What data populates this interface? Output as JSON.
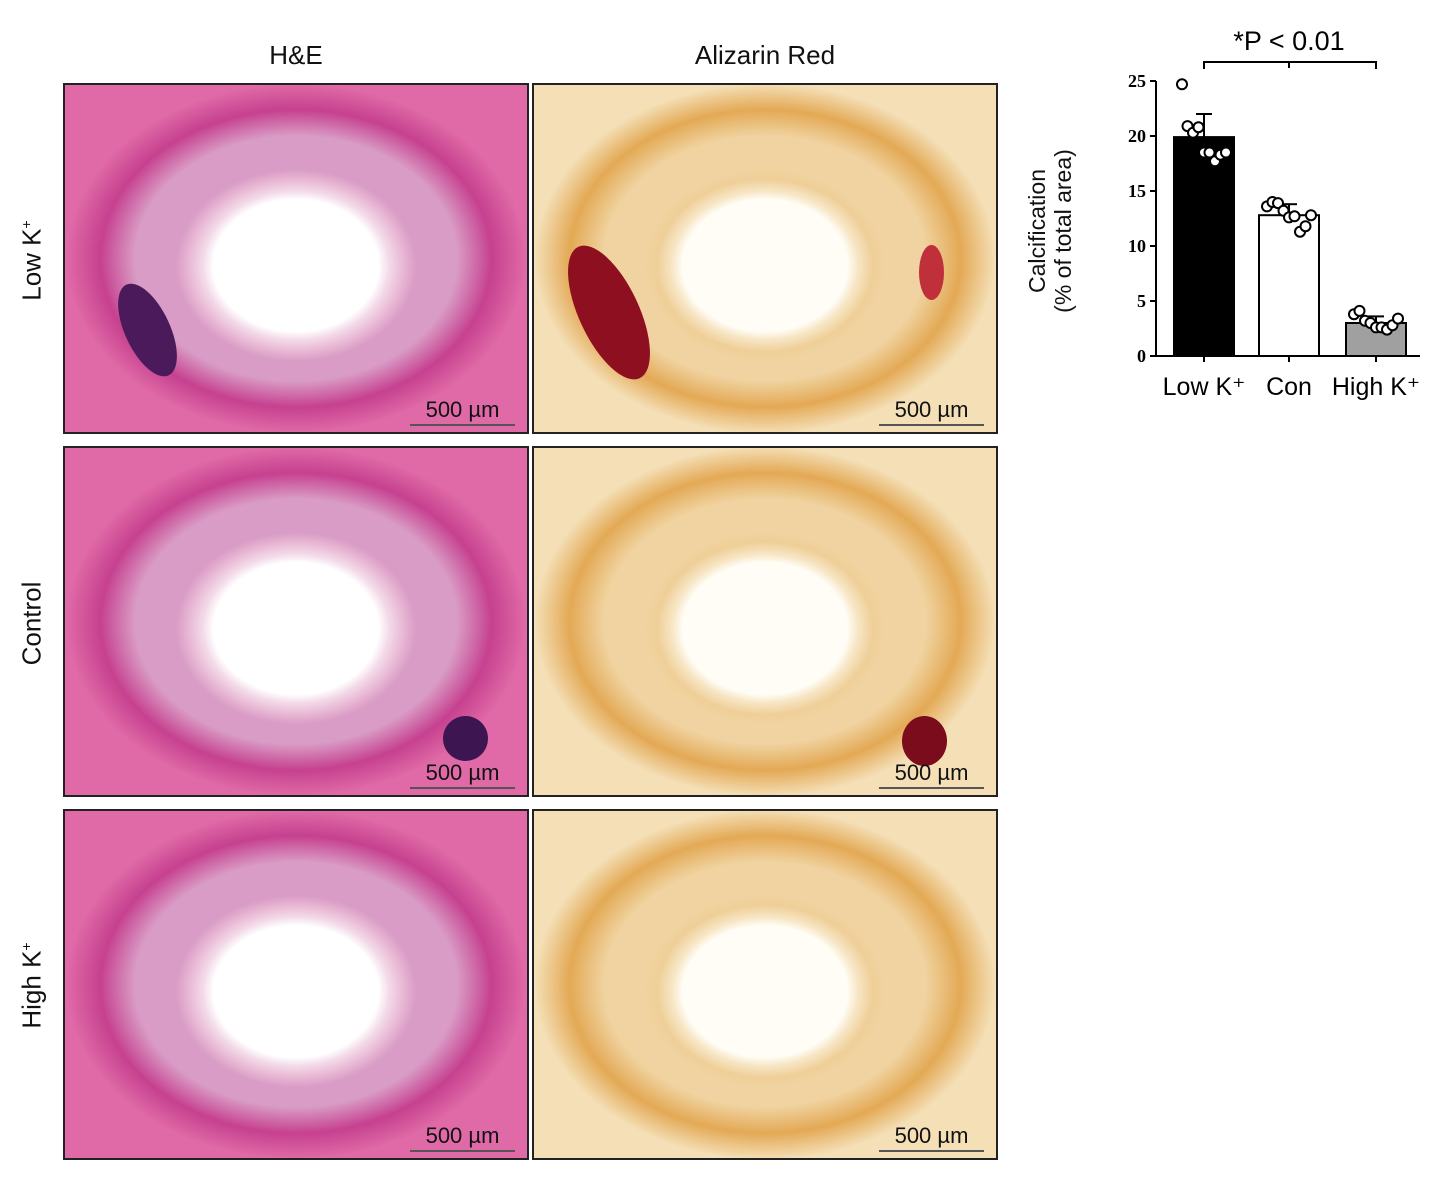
{
  "columns": [
    "H&E",
    "Alizarin Red"
  ],
  "rows": [
    {
      "label": "Low K",
      "sup": "+"
    },
    {
      "label": "Control",
      "sup": ""
    },
    {
      "label": "High K",
      "sup": "+"
    }
  ],
  "scale_bar": "500 µm",
  "chart_data": {
    "type": "bar",
    "categories": [
      "Low K⁺",
      "Con",
      "High K⁺"
    ],
    "values": [
      19.9,
      12.8,
      3.0
    ],
    "errors": [
      2.1,
      1.0,
      0.6
    ],
    "bar_colors": [
      "#000000",
      "#ffffff",
      "#a0a0a0"
    ],
    "points": [
      [
        24.7,
        20.9,
        20.3,
        20.8,
        18.5,
        18.5,
        17.7,
        18.3,
        18.5
      ],
      [
        13.6,
        14.0,
        13.9,
        13.2,
        12.6,
        12.7,
        11.3,
        11.8,
        12.8
      ],
      [
        3.8,
        4.1,
        3.2,
        3.0,
        2.6,
        2.6,
        2.4,
        2.8,
        3.4
      ]
    ],
    "ylabel_line1": "Calcification",
    "ylabel_line2": "(% of total area)",
    "ylim": [
      0,
      25
    ],
    "yticks": [
      "0",
      "5",
      "10",
      "15",
      "20",
      "25"
    ],
    "annotation": "*P < 0.01"
  }
}
